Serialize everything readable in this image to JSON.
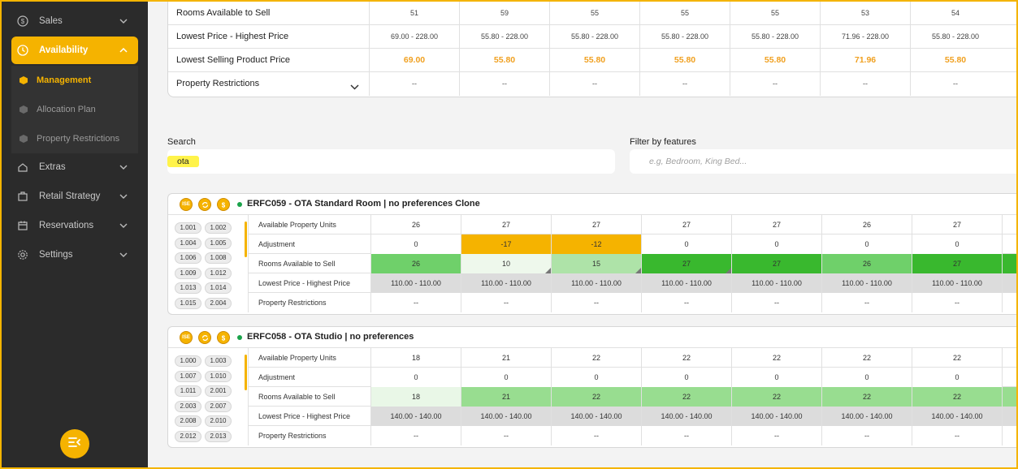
{
  "sidebar": {
    "items": [
      {
        "label": "Sales",
        "icon": "dollar-icon"
      },
      {
        "label": "Availability",
        "icon": "clock-icon"
      },
      {
        "label": "Extras",
        "icon": "extras-icon"
      },
      {
        "label": "Retail Strategy",
        "icon": "retail-strategy-icon"
      },
      {
        "label": "Reservations",
        "icon": "calendar-icon"
      },
      {
        "label": "Settings",
        "icon": "gear-icon"
      }
    ],
    "subitems": [
      {
        "label": "Management"
      },
      {
        "label": "Allocation Plan"
      },
      {
        "label": "Property Restrictions"
      }
    ],
    "colors": {
      "accent": "#f5b300",
      "background": "#2b2b2b"
    }
  },
  "top_table": {
    "rows": [
      {
        "label": "Rooms Available to Sell",
        "values": [
          "51",
          "59",
          "55",
          "55",
          "55",
          "53",
          "54"
        ]
      },
      {
        "label": "Lowest Price - Highest Price",
        "values": [
          "69.00 - 228.00",
          "55.80 - 228.00",
          "55.80 - 228.00",
          "55.80 - 228.00",
          "55.80 - 228.00",
          "71.96 - 228.00",
          "55.80 - 228.00"
        ]
      },
      {
        "label": "Lowest Selling Product Price",
        "values": [
          "69.00",
          "55.80",
          "55.80",
          "55.80",
          "55.80",
          "71.96",
          "55.80"
        ]
      },
      {
        "label": "Property Restrictions",
        "values": [
          "--",
          "--",
          "--",
          "--",
          "--",
          "--",
          "--"
        ]
      }
    ]
  },
  "search": {
    "label": "Search",
    "value": "ota"
  },
  "filter": {
    "label": "Filter by features",
    "placeholder": "e.g, Bedroom, King Bed..."
  },
  "rooms": [
    {
      "badges": [
        "ISE",
        "",
        ""
      ],
      "title": "ERFC059 - OTA Standard Room | no preferences Clone",
      "codes": [
        "1.001",
        "1.002",
        "1.004",
        "1.005",
        "1.006",
        "1.008",
        "1.009",
        "1.012",
        "1.013",
        "1.014",
        "1.015",
        "2.004"
      ],
      "rows": [
        {
          "label": "Available Property Units",
          "values": [
            "26",
            "27",
            "27",
            "27",
            "27",
            "26",
            "27"
          ]
        },
        {
          "label": "Adjustment",
          "values": [
            "0",
            "-17",
            "-12",
            "0",
            "0",
            "0",
            "0"
          ]
        },
        {
          "label": "Rooms Available to Sell",
          "values": [
            "26",
            "10",
            "15",
            "27",
            "27",
            "26",
            "27"
          ]
        },
        {
          "label": "Lowest Price - Highest Price",
          "values": [
            "110.00 - 110.00",
            "110.00 - 110.00",
            "110.00 - 110.00",
            "110.00 - 110.00",
            "110.00 - 110.00",
            "110.00 - 110.00",
            "110.00 - 110.00"
          ]
        },
        {
          "label": "Property Restrictions",
          "values": [
            "--",
            "--",
            "--",
            "--",
            "--",
            "--",
            "--"
          ]
        }
      ],
      "adjust_colors": [
        "#ffffff",
        "#f5b300",
        "#f5b300",
        "#ffffff",
        "#ffffff",
        "#ffffff",
        "#ffffff"
      ],
      "avail_colors": [
        "#6fd06a",
        "#eef8ec",
        "#aee3a8",
        "#39b82e",
        "#39b82e",
        "#6fd06a",
        "#39b82e"
      ]
    },
    {
      "badges": [
        "ISE",
        "",
        ""
      ],
      "title": "ERFC058 - OTA Studio | no preferences",
      "codes": [
        "1.000",
        "1.003",
        "1.007",
        "1.010",
        "1.011",
        "2.001",
        "2.003",
        "2.007",
        "2.008",
        "2.010",
        "2.012",
        "2.013"
      ],
      "rows": [
        {
          "label": "Available Property Units",
          "values": [
            "18",
            "21",
            "22",
            "22",
            "22",
            "22",
            "22"
          ]
        },
        {
          "label": "Adjustment",
          "values": [
            "0",
            "0",
            "0",
            "0",
            "0",
            "0",
            "0"
          ]
        },
        {
          "label": "Rooms Available to Sell",
          "values": [
            "18",
            "21",
            "22",
            "22",
            "22",
            "22",
            "22"
          ]
        },
        {
          "label": "Lowest Price - Highest Price",
          "values": [
            "140.00 - 140.00",
            "140.00 - 140.00",
            "140.00 - 140.00",
            "140.00 - 140.00",
            "140.00 - 140.00",
            "140.00 - 140.00",
            "140.00 - 140.00"
          ]
        },
        {
          "label": "Property Restrictions",
          "values": [
            "--",
            "--",
            "--",
            "--",
            "--",
            "--",
            "--"
          ]
        }
      ],
      "adjust_colors": [
        "#ffffff",
        "#ffffff",
        "#ffffff",
        "#ffffff",
        "#ffffff",
        "#ffffff",
        "#ffffff"
      ],
      "avail_colors": [
        "#e9f7e7",
        "#98dd90",
        "#98dd90",
        "#98dd90",
        "#98dd90",
        "#98dd90",
        "#98dd90"
      ]
    }
  ]
}
